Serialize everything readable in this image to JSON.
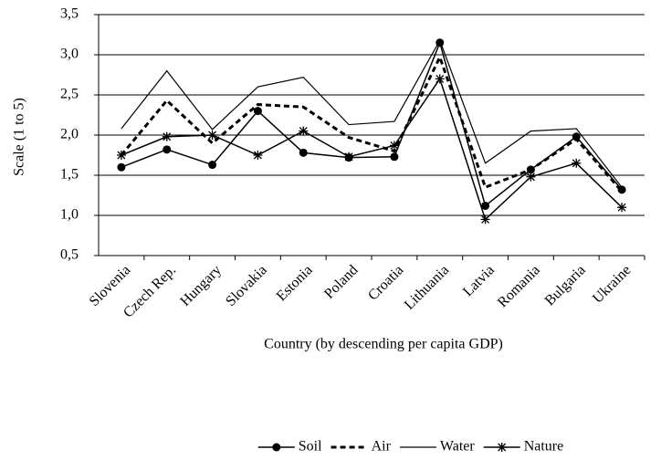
{
  "chart_data": {
    "type": "line",
    "x_label": "Country (by descending per capita GDP)",
    "y_label": "Scale (1 to 5)",
    "categories": [
      "Slovenia",
      "Czech Rep.",
      "Hungary",
      "Slovakia",
      "Estonia",
      "Poland",
      "Croatia",
      "Lithuania",
      "Latvia",
      "Romania",
      "Bulgaria",
      "Ukraine"
    ],
    "series": [
      {
        "name": "Soil",
        "color": "#000000",
        "marker": "circle",
        "dash": false,
        "width": 1.5,
        "values": [
          1.6,
          1.82,
          1.63,
          2.3,
          1.78,
          1.72,
          1.73,
          3.15,
          1.12,
          1.57,
          1.98,
          1.32
        ]
      },
      {
        "name": "Air",
        "color": "#000000",
        "marker": "none",
        "dash": true,
        "width": 3,
        "values": [
          1.75,
          2.43,
          1.9,
          2.38,
          2.35,
          1.97,
          1.8,
          2.97,
          1.35,
          1.57,
          1.95,
          1.3
        ]
      },
      {
        "name": "Water",
        "color": "#000000",
        "marker": "none",
        "dash": false,
        "width": 1.2,
        "values": [
          2.08,
          2.8,
          2.07,
          2.6,
          2.72,
          2.13,
          2.17,
          3.18,
          1.65,
          2.05,
          2.08,
          1.35
        ]
      },
      {
        "name": "Nature",
        "color": "#000000",
        "marker": "star",
        "dash": false,
        "width": 1.5,
        "values": [
          1.75,
          1.98,
          2.0,
          1.75,
          2.05,
          1.73,
          1.87,
          2.7,
          0.95,
          1.48,
          1.65,
          1.1
        ]
      }
    ],
    "ylim": [
      0.5,
      3.5
    ],
    "yticks": [
      {
        "value": 0.5,
        "label": "0,5"
      },
      {
        "value": 1.0,
        "label": "1,0"
      },
      {
        "value": 1.5,
        "label": "1,5"
      },
      {
        "value": 2.0,
        "label": "2,0"
      },
      {
        "value": 2.5,
        "label": "2,5"
      },
      {
        "value": 3.0,
        "label": "3,0"
      },
      {
        "value": 3.5,
        "label": "3,5"
      }
    ],
    "grid": true,
    "legend": "bottom"
  }
}
